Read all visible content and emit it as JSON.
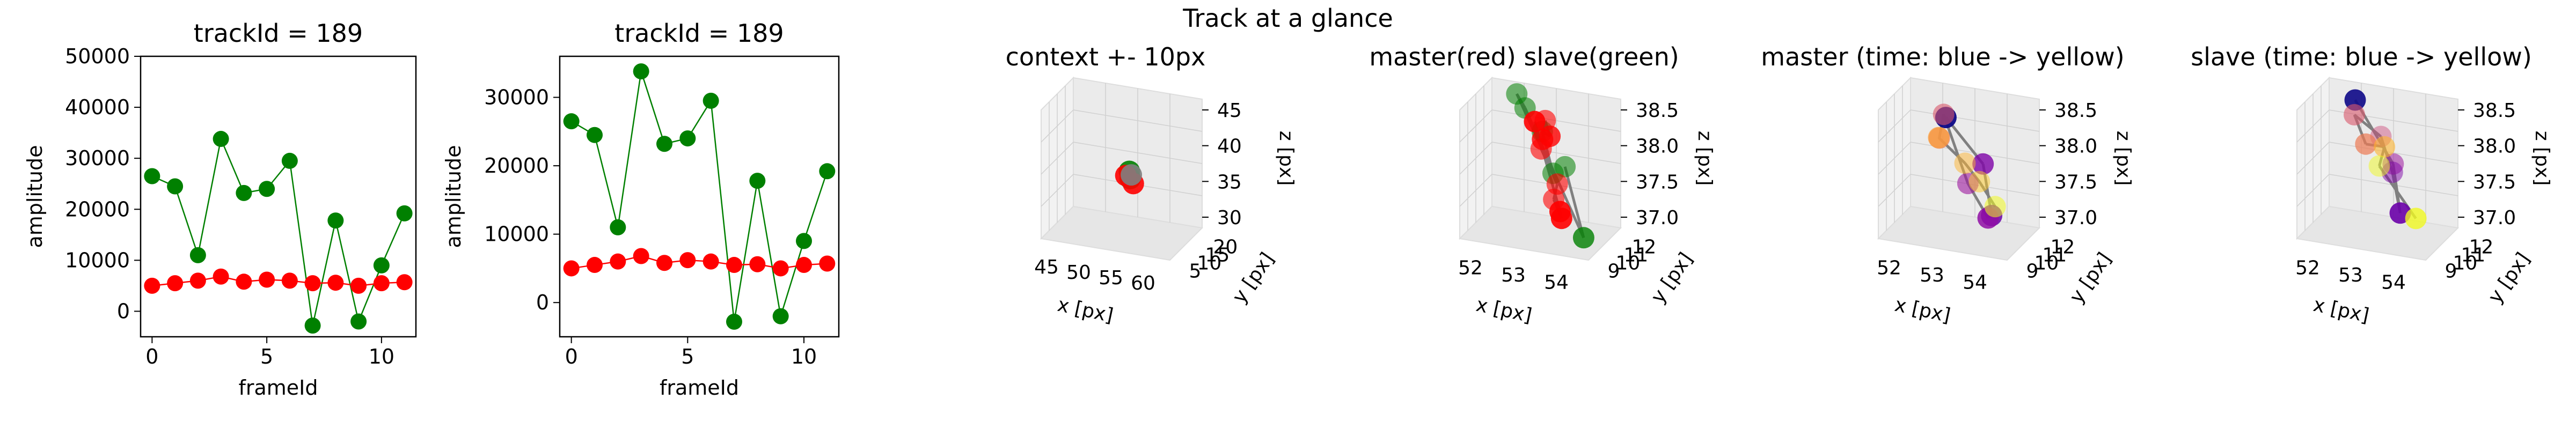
{
  "suptitle": "Track at a glance",
  "colors": {
    "master": "#ff0000",
    "slave": "#008000",
    "line": "#808080",
    "pane": "#f2f2f2",
    "axis": "#000000",
    "grid": "#dddddd"
  },
  "chart_data": [
    {
      "type": "line",
      "title": "trackId = 189",
      "xlabel": "frameId",
      "ylabel": "amplitude",
      "xlim": [
        -0.5,
        11.5
      ],
      "ylim": [
        -5000,
        50000
      ],
      "xticks": [
        0,
        5,
        10
      ],
      "yticks": [
        0,
        10000,
        20000,
        30000,
        40000,
        50000
      ],
      "x": [
        0,
        1,
        2,
        3,
        4,
        5,
        6,
        7,
        8,
        9,
        10,
        11
      ],
      "series": [
        {
          "values": [
            26500,
            24500,
            11000,
            33800,
            23200,
            24000,
            29500,
            -2800,
            17800,
            -2000,
            9000,
            19200
          ],
          "color": "#008000"
        },
        {
          "values": [
            5000,
            5500,
            6000,
            6800,
            5800,
            6200,
            6000,
            5500,
            5600,
            5000,
            5500,
            5700
          ],
          "color": "#ff0000"
        }
      ]
    },
    {
      "type": "line",
      "title": "trackId = 189",
      "xlabel": "frameId",
      "ylabel": "amplitude",
      "xlim": [
        -0.5,
        11.5
      ],
      "ylim": [
        -5000,
        36000
      ],
      "xticks": [
        0,
        5,
        10
      ],
      "yticks": [
        0,
        10000,
        20000,
        30000
      ],
      "x": [
        0,
        1,
        2,
        3,
        4,
        5,
        6,
        7,
        8,
        9,
        10,
        11
      ],
      "series": [
        {
          "values": [
            26500,
            24500,
            11000,
            33800,
            23200,
            24000,
            29500,
            -2800,
            17800,
            -2000,
            9000,
            19200
          ],
          "color": "#008000"
        },
        {
          "values": [
            5000,
            5500,
            6000,
            6800,
            5800,
            6200,
            6000,
            5500,
            5600,
            5000,
            5500,
            5700
          ],
          "color": "#ff0000"
        }
      ]
    },
    {
      "type": "scatter",
      "projection": "3d",
      "title": "context +- 10px",
      "xlabel": "x [px]",
      "ylabel": "y [px]",
      "zlabel": "z [px]",
      "xticks": [
        "45",
        "50",
        "55",
        "60"
      ],
      "yticks": [
        "5",
        "10",
        "15",
        "20"
      ],
      "zticks": [
        "30",
        "35",
        "40",
        "45"
      ],
      "points": [
        {
          "x": 0.48,
          "y": 0.5,
          "z": 0.4,
          "color": "#008000"
        },
        {
          "x": 0.54,
          "y": 0.52,
          "z": 0.44,
          "color": "#008000"
        },
        {
          "x": 0.5,
          "y": 0.48,
          "z": 0.36,
          "color": "#ff0000"
        },
        {
          "x": 0.55,
          "y": 0.55,
          "z": 0.4,
          "color": "#ff0000"
        },
        {
          "x": 0.52,
          "y": 0.5,
          "z": 0.42,
          "color": "#808080"
        }
      ]
    },
    {
      "type": "scatter",
      "projection": "3d",
      "title": "master(red) slave(green)",
      "xlabel": "x [px]",
      "ylabel": "y [px]",
      "zlabel": "z [px]",
      "xticks": [
        "52",
        "53",
        "54"
      ],
      "yticks": [
        "9",
        "10",
        "11",
        "12"
      ],
      "zticks": [
        "37.0",
        "37.5",
        "38.0",
        "38.5"
      ],
      "points": [
        {
          "x": 0.15,
          "y": 0.3,
          "z": 0.6,
          "color": "#008000",
          "alpha": 0.55
        },
        {
          "x": 0.35,
          "y": 0.2,
          "z": 0.02,
          "color": "#008000",
          "alpha": 0.8
        },
        {
          "x": 0.55,
          "y": 0.7,
          "z": 0.9,
          "color": "#008000",
          "alpha": 0.55
        },
        {
          "x": 0.62,
          "y": 0.78,
          "z": 0.98,
          "color": "#008000",
          "alpha": 0.55
        },
        {
          "x": 0.85,
          "y": 0.55,
          "z": 0.35,
          "color": "#008000",
          "alpha": 0.55
        },
        {
          "x": 0.7,
          "y": 0.6,
          "z": 0.7,
          "color": "#008000",
          "alpha": 0.55
        },
        {
          "x": 0.52,
          "y": 0.5,
          "z": 0.72,
          "color": "#ff0000",
          "alpha": 0.8
        },
        {
          "x": 0.58,
          "y": 0.55,
          "z": 0.82,
          "color": "#ff0000",
          "alpha": 0.6
        },
        {
          "x": 0.62,
          "y": 0.58,
          "z": 0.66,
          "color": "#ff0000",
          "alpha": 0.8
        },
        {
          "x": 0.75,
          "y": 0.62,
          "z": 0.55,
          "color": "#ff0000",
          "alpha": 0.6
        },
        {
          "x": 0.55,
          "y": 0.45,
          "z": 0.35,
          "color": "#ff0000",
          "alpha": 0.6
        },
        {
          "x": 0.65,
          "y": 0.5,
          "z": 0.2,
          "color": "#ff0000",
          "alpha": 0.6
        },
        {
          "x": 0.7,
          "y": 0.45,
          "z": 0.05,
          "color": "#ff0000",
          "alpha": 0.9
        },
        {
          "x": 0.78,
          "y": 0.48,
          "z": 0.08,
          "color": "#ff0000",
          "alpha": 0.9
        },
        {
          "x": 0.88,
          "y": 0.7,
          "z": 0.72,
          "color": "#ff0000",
          "alpha": 0.9
        }
      ]
    },
    {
      "type": "scatter",
      "projection": "3d",
      "title": "master (time: blue -> yellow)",
      "xlabel": "x [px]",
      "ylabel": "y [px]",
      "zlabel": "z [px]",
      "xticks": [
        "52",
        "53",
        "54"
      ],
      "yticks": [
        "9",
        "10",
        "11",
        "12"
      ],
      "zticks": [
        "37.0",
        "37.5",
        "38.0",
        "38.5"
      ],
      "points": [
        {
          "x": 0.85,
          "y": 0.75,
          "z": 0.75,
          "color": "#0d0887",
          "alpha": 0.95
        },
        {
          "x": 0.8,
          "y": 0.45,
          "z": 0.45,
          "color": "#7e03a8",
          "alpha": 0.8
        },
        {
          "x": 0.65,
          "y": 0.35,
          "z": 0.1,
          "color": "#6a00a8",
          "alpha": 0.85
        },
        {
          "x": 0.75,
          "y": 0.4,
          "z": 0.05,
          "color": "#8f0da4",
          "alpha": 0.85
        },
        {
          "x": 0.72,
          "y": 0.55,
          "z": 0.3,
          "color": "#9c179e",
          "alpha": 0.6
        },
        {
          "x": 0.55,
          "y": 0.7,
          "z": 0.85,
          "color": "#d8576b",
          "alpha": 0.6
        },
        {
          "x": 0.4,
          "y": 0.7,
          "z": 0.7,
          "color": "#ed7953",
          "alpha": 0.7
        },
        {
          "x": 0.6,
          "y": 0.75,
          "z": 0.65,
          "color": "#fb9f3a",
          "alpha": 0.7
        },
        {
          "x": 0.62,
          "y": 0.55,
          "z": 0.48,
          "color": "#fdb42f",
          "alpha": 0.5
        },
        {
          "x": 0.45,
          "y": 0.4,
          "z": 0.4,
          "color": "#fdca26",
          "alpha": 0.5
        },
        {
          "x": 0.55,
          "y": 0.3,
          "z": 0.2,
          "color": "#f0f921",
          "alpha": 0.55
        }
      ]
    },
    {
      "type": "scatter",
      "projection": "3d",
      "title": "slave (time: blue -> yellow)",
      "xlabel": "x [px]",
      "ylabel": "y [px]",
      "zlabel": "z [px]",
      "xticks": [
        "52",
        "53",
        "54"
      ],
      "yticks": [
        "9",
        "10",
        "11",
        "12"
      ],
      "zticks": [
        "37.0",
        "37.5",
        "38.0",
        "38.5"
      ],
      "points": [
        {
          "x": 0.75,
          "y": 0.8,
          "z": 0.9,
          "color": "#0d0887",
          "alpha": 0.9
        },
        {
          "x": 0.95,
          "y": 0.55,
          "z": 0.4,
          "color": "#9c179e",
          "alpha": 0.55
        },
        {
          "x": 0.75,
          "y": 0.45,
          "z": 0.08,
          "color": "#6a00a8",
          "alpha": 0.9
        },
        {
          "x": 0.7,
          "y": 0.5,
          "z": 0.4,
          "color": "#7e03a8",
          "alpha": 0.5
        },
        {
          "x": 0.75,
          "y": 0.6,
          "z": 0.65,
          "color": "#cc4778",
          "alpha": 0.45
        },
        {
          "x": 0.5,
          "y": 0.75,
          "z": 0.85,
          "color": "#d8576b",
          "alpha": 0.6
        },
        {
          "x": 0.45,
          "y": 0.65,
          "z": 0.65,
          "color": "#ed7953",
          "alpha": 0.7
        },
        {
          "x": 0.65,
          "y": 0.55,
          "z": 0.6,
          "color": "#fdb42f",
          "alpha": 0.6
        },
        {
          "x": 0.25,
          "y": 0.5,
          "z": 0.55,
          "color": "#f0f921",
          "alpha": 0.5
        },
        {
          "x": 0.4,
          "y": 0.25,
          "z": 0.15,
          "color": "#f0f921",
          "alpha": 0.8
        }
      ]
    }
  ]
}
